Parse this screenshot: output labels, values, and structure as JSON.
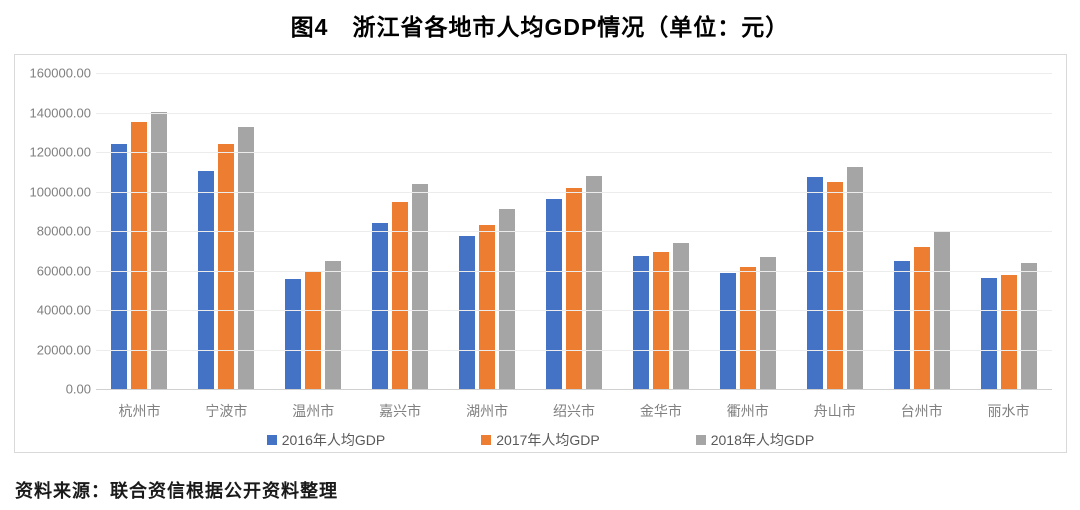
{
  "title": "图4　浙江省各地市人均GDP情况（单位：元）",
  "source_note": "资料来源：联合资信根据公开资料整理",
  "chart_data": {
    "type": "bar",
    "title": "图4　浙江省各地市人均GDP情况（单位：元）",
    "xlabel": "",
    "ylabel": "",
    "unit": "元",
    "ylim": [
      0,
      160000
    ],
    "y_tick_step": 20000,
    "y_ticks": [
      "160000.00",
      "140000.00",
      "120000.00",
      "100000.00",
      "80000.00",
      "60000.00",
      "40000.00",
      "20000.00",
      "0.00"
    ],
    "grid": true,
    "legend_position": "bottom",
    "categories": [
      "杭州市",
      "宁波市",
      "温州市",
      "嘉兴市",
      "湖州市",
      "绍兴市",
      "金华市",
      "衢州市",
      "舟山市",
      "台州市",
      "丽水市"
    ],
    "series": [
      {
        "name": "2016年人均GDP",
        "color": "#4472C4",
        "values": [
          124200,
          110600,
          55800,
          84300,
          77500,
          96200,
          67200,
          58700,
          107400,
          64700,
          56400
        ]
      },
      {
        "name": "2017年人均GDP",
        "color": "#ED7D31",
        "values": [
          135100,
          124000,
          59000,
          94900,
          83000,
          101900,
          69500,
          61700,
          104800,
          72000,
          57900
        ]
      },
      {
        "name": "2018年人均GDP",
        "color": "#A5A5A5",
        "values": [
          140400,
          132600,
          65000,
          103900,
          90900,
          107900,
          73700,
          66900,
          112400,
          79500,
          63900
        ]
      }
    ]
  }
}
